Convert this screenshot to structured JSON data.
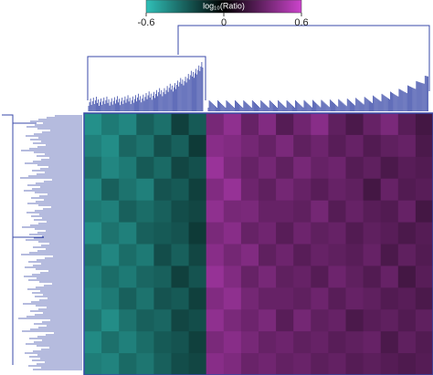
{
  "chart_data": {
    "type": "heatmap",
    "colorbar_label": "log₁₀(Ratio)",
    "clim": [
      -0.6,
      0.6
    ],
    "colorbar_ticks": [
      -0.6,
      0,
      0.6
    ],
    "low_color": "#30c0b8",
    "mid_color": "#000000",
    "high_color": "#cc44cc",
    "z": [
      [
        -0.45,
        -0.38,
        -0.42,
        -0.3,
        -0.35,
        -0.2,
        -0.28,
        0.35,
        0.42,
        0.3,
        0.38,
        0.25,
        0.33,
        0.4,
        0.28,
        0.22,
        0.3,
        0.36,
        0.26,
        0.2
      ],
      [
        -0.4,
        -0.44,
        -0.32,
        -0.36,
        -0.25,
        -0.3,
        -0.18,
        0.4,
        0.38,
        0.34,
        0.3,
        0.36,
        0.28,
        0.32,
        0.26,
        0.3,
        0.24,
        0.28,
        0.3,
        0.22
      ],
      [
        -0.35,
        -0.42,
        -0.38,
        -0.28,
        -0.33,
        -0.22,
        -0.25,
        0.45,
        0.36,
        0.3,
        0.34,
        0.28,
        0.35,
        0.3,
        0.32,
        0.25,
        0.28,
        0.22,
        0.26,
        0.24
      ],
      [
        -0.42,
        -0.3,
        -0.36,
        -0.4,
        -0.26,
        -0.28,
        -0.2,
        0.38,
        0.44,
        0.32,
        0.28,
        0.34,
        0.3,
        0.26,
        0.3,
        0.28,
        0.2,
        0.3,
        0.24,
        0.26
      ],
      [
        -0.38,
        -0.4,
        -0.3,
        -0.34,
        -0.3,
        -0.24,
        -0.22,
        0.42,
        0.35,
        0.36,
        0.3,
        0.3,
        0.28,
        0.34,
        0.25,
        0.3,
        0.26,
        0.24,
        0.3,
        0.2
      ],
      [
        -0.44,
        -0.36,
        -0.4,
        -0.3,
        -0.28,
        -0.26,
        -0.18,
        0.36,
        0.4,
        0.3,
        0.33,
        0.26,
        0.32,
        0.28,
        0.3,
        0.24,
        0.28,
        0.26,
        0.22,
        0.25
      ],
      [
        -0.36,
        -0.42,
        -0.34,
        -0.38,
        -0.24,
        -0.3,
        -0.22,
        0.4,
        0.34,
        0.38,
        0.28,
        0.32,
        0.26,
        0.3,
        0.28,
        0.26,
        0.3,
        0.22,
        0.28,
        0.24
      ],
      [
        -0.4,
        -0.34,
        -0.38,
        -0.32,
        -0.3,
        -0.2,
        -0.26,
        0.44,
        0.38,
        0.3,
        0.35,
        0.28,
        0.3,
        0.25,
        0.32,
        0.28,
        0.24,
        0.3,
        0.2,
        0.26
      ],
      [
        -0.42,
        -0.38,
        -0.3,
        -0.36,
        -0.26,
        -0.28,
        -0.2,
        0.38,
        0.42,
        0.34,
        0.3,
        0.3,
        0.28,
        0.32,
        0.26,
        0.3,
        0.28,
        0.24,
        0.26,
        0.22
      ],
      [
        -0.37,
        -0.44,
        -0.36,
        -0.3,
        -0.32,
        -0.22,
        -0.24,
        0.42,
        0.36,
        0.32,
        0.36,
        0.26,
        0.34,
        0.28,
        0.3,
        0.22,
        0.26,
        0.28,
        0.24,
        0.28
      ],
      [
        -0.43,
        -0.35,
        -0.4,
        -0.34,
        -0.28,
        -0.26,
        -0.2,
        0.36,
        0.4,
        0.35,
        0.3,
        0.32,
        0.28,
        0.3,
        0.26,
        0.28,
        0.3,
        0.22,
        0.28,
        0.24
      ],
      [
        -0.39,
        -0.41,
        -0.33,
        -0.37,
        -0.3,
        -0.24,
        -0.22,
        0.4,
        0.37,
        0.31,
        0.33,
        0.29,
        0.31,
        0.27,
        0.29,
        0.25,
        0.27,
        0.25,
        0.23,
        0.25
      ]
    ]
  }
}
